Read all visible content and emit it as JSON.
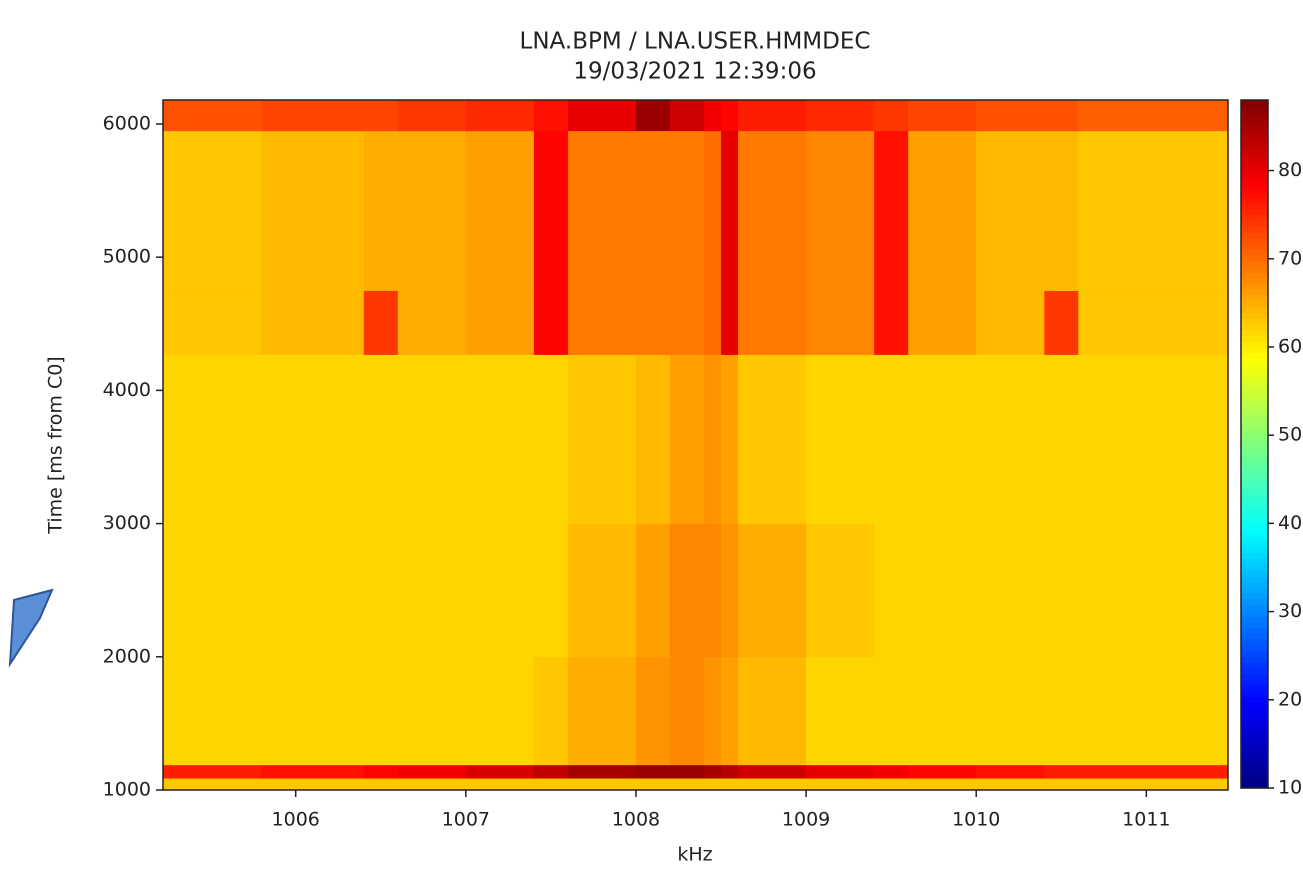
{
  "chart_data": {
    "type": "heatmap",
    "title": "LNA.BPM / LNA.USER.HMMDEC",
    "subtitle": "19/03/2021 12:39:06",
    "x_label": "kHz",
    "y_label": "Time [ms from C0]",
    "colormap": "jet",
    "xlim": [
      1005.22,
      1011.48
    ],
    "ylim": [
      1000,
      6180
    ],
    "xticks": [
      1006,
      1007,
      1008,
      1009,
      1010,
      1011
    ],
    "yticks": [
      1000,
      2000,
      3000,
      4000,
      5000,
      6000
    ],
    "clim": [
      10,
      88
    ],
    "cticks": [
      10,
      20,
      30,
      40,
      50,
      60,
      70,
      80
    ],
    "x_edges": [
      1005.22,
      1005.8,
      1006.4,
      1006.6,
      1007.0,
      1007.4,
      1007.6,
      1008.0,
      1008.2,
      1008.4,
      1008.5,
      1008.6,
      1009.0,
      1009.4,
      1009.6,
      1010.0,
      1010.4,
      1010.6,
      1011.48
    ],
    "y_edges": [
      1000,
      1090,
      1190,
      2000,
      3000,
      4270,
      4750,
      5950,
      6180
    ],
    "values": [
      [
        63,
        63,
        63,
        63,
        63,
        63,
        63,
        63,
        63,
        63,
        63,
        63,
        63,
        63,
        63,
        63,
        63,
        63
      ],
      [
        76,
        77,
        78,
        79,
        81,
        83,
        85,
        86,
        86,
        85,
        84,
        82,
        80,
        79,
        78,
        77,
        76,
        76
      ],
      [
        62,
        62,
        62,
        62,
        62,
        63,
        65,
        67,
        68,
        67,
        66,
        64,
        62,
        62,
        62,
        62,
        62,
        62
      ],
      [
        62,
        62,
        62,
        62,
        62,
        62,
        64,
        66,
        68,
        68,
        67,
        65,
        63,
        62,
        62,
        62,
        62,
        62
      ],
      [
        62,
        62,
        62,
        62,
        62,
        62,
        63,
        64,
        66,
        67,
        66,
        63,
        62,
        62,
        62,
        62,
        62,
        62
      ],
      [
        63,
        64,
        74,
        65,
        66,
        78,
        69,
        69,
        69,
        70,
        80,
        69,
        68,
        77,
        66,
        64,
        74,
        63
      ],
      [
        63,
        64,
        65,
        65,
        66,
        78,
        69,
        69,
        69,
        70,
        80,
        69,
        68,
        77,
        66,
        64,
        64,
        63
      ],
      [
        72,
        73,
        73,
        74,
        75,
        77,
        80,
        86,
        82,
        79,
        78,
        76,
        75,
        74,
        73,
        72,
        72,
        71
      ]
    ]
  }
}
